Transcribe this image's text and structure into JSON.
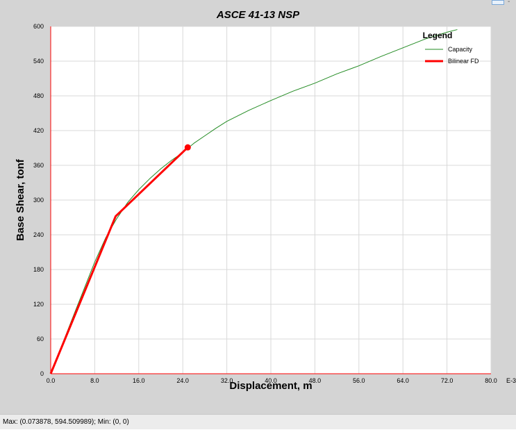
{
  "window": {
    "status_text": "Max: (0.073878, 594.509989);   Min: (0, 0)",
    "corner_mark": "-"
  },
  "colors": {
    "background": "#d4d4d4",
    "plot_background": "#ffffff",
    "axis": "#ff0000",
    "grid": "#d8d8d8",
    "capacity": "#228b22",
    "bilinear": "#ff0000"
  },
  "chart_data": {
    "type": "line",
    "title": "ASCE 41-13 NSP",
    "xlabel": "Displacement, m",
    "ylabel": "Base Shear, tonf",
    "x_unit_suffix": "E-3",
    "xlim": [
      0,
      80
    ],
    "ylim": [
      0,
      600
    ],
    "xticks": [
      0,
      8,
      16,
      24,
      32,
      40,
      48,
      56,
      64,
      72,
      80
    ],
    "xtick_labels": [
      "0.0",
      "8.0",
      "16.0",
      "24.0",
      "32.0",
      "40.0",
      "48.0",
      "56.0",
      "64.0",
      "72.0",
      "80.0"
    ],
    "yticks": [
      0,
      60,
      120,
      180,
      240,
      300,
      360,
      420,
      480,
      540,
      600
    ],
    "ytick_labels": [
      "0",
      "60",
      "120",
      "180",
      "240",
      "300",
      "360",
      "420",
      "480",
      "540",
      "600"
    ],
    "grid": true,
    "legend": {
      "title": "Legend",
      "position": "top-right"
    },
    "series": [
      {
        "name": "Capacity",
        "color": "#228b22",
        "x": [
          0,
          4,
          8,
          10,
          12,
          14,
          16,
          18,
          20,
          22,
          24,
          26,
          28,
          30,
          32,
          36,
          40,
          44,
          48,
          52,
          56,
          60,
          64,
          68,
          72,
          73.878
        ],
        "y": [
          0,
          97,
          193,
          235,
          268,
          296,
          318,
          337,
          354,
          369,
          382,
          398,
          411,
          424,
          436,
          455,
          472,
          488,
          502,
          518,
          532,
          548,
          563,
          578,
          590,
          594.51
        ]
      },
      {
        "name": "Bilinear FD",
        "color": "#ff0000",
        "x": [
          0,
          11.8,
          24.9
        ],
        "y": [
          0,
          272,
          391
        ]
      }
    ],
    "markers": [
      {
        "x": 24.9,
        "y": 391,
        "color": "#ff0000"
      }
    ]
  }
}
